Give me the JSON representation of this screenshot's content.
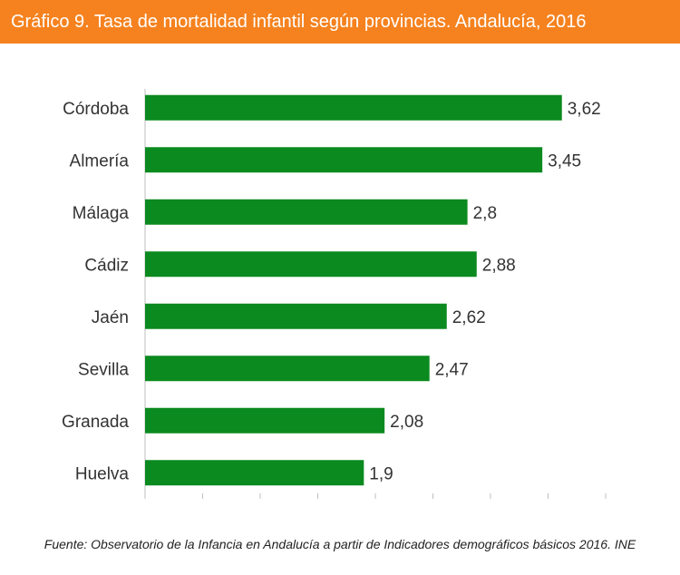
{
  "header": {
    "title": "Gráfico 9. Tasa de mortalidad infantil según provincias. Andalucía, 2016"
  },
  "colors": {
    "header_bg": "#f5821f",
    "bar": "#0b8a1f",
    "axis": "#bfbfbf",
    "text": "#333333"
  },
  "chart_data": {
    "type": "bar",
    "orientation": "horizontal",
    "categories": [
      "Córdoba",
      "Almería",
      "Málaga",
      "Cádiz",
      "Jaén",
      "Sevilla",
      "Granada",
      "Huelva"
    ],
    "values": [
      3.62,
      3.45,
      2.8,
      2.88,
      2.62,
      2.47,
      2.08,
      1.9
    ],
    "data_labels": [
      "3,62",
      "3,45",
      "2,8",
      "2,88",
      "2,62",
      "2,47",
      "2,08",
      "1,9"
    ],
    "xlim": [
      0,
      4
    ],
    "grid": false,
    "xlabel": "",
    "ylabel": ""
  },
  "footer": {
    "source": "Fuente: Observatorio de la Infancia en Andalucía a partir de Indicadores demográficos básicos 2016. INE"
  }
}
